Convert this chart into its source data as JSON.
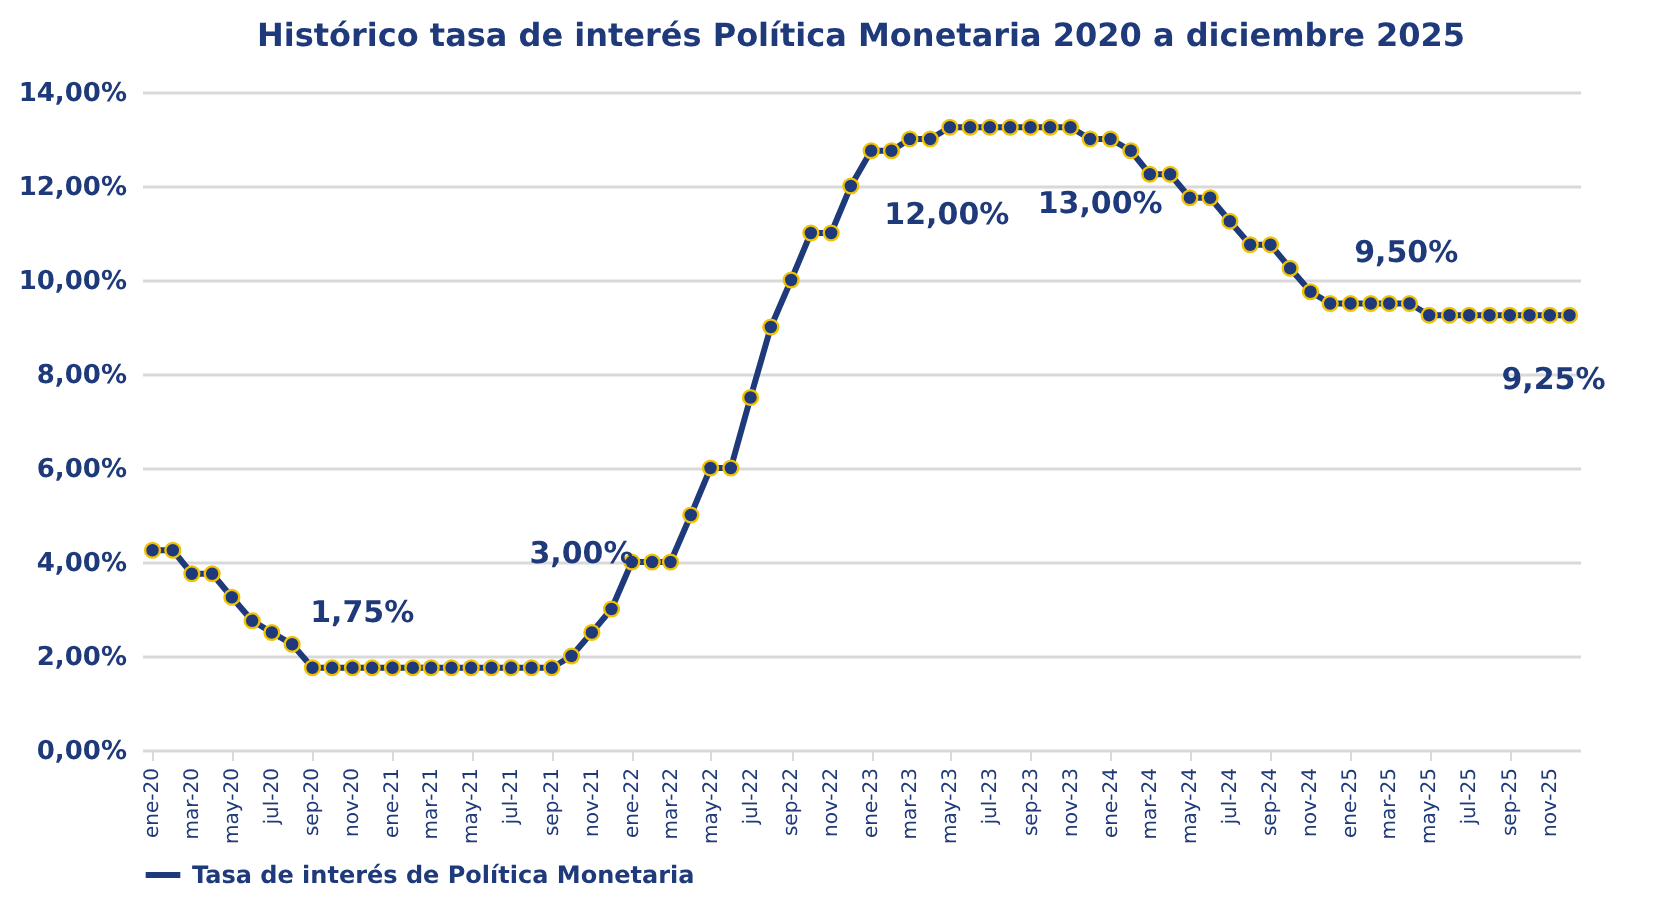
{
  "chart_data": {
    "type": "line",
    "title": "Histórico tasa de interés Política Monetaria 2020 a diciembre 2025",
    "x": [
      "2020-01",
      "2020-02",
      "2020-03",
      "2020-04",
      "2020-05",
      "2020-06",
      "2020-07",
      "2020-08",
      "2020-09",
      "2020-10",
      "2020-11",
      "2020-12",
      "2021-01",
      "2021-02",
      "2021-03",
      "2021-04",
      "2021-05",
      "2021-06",
      "2021-07",
      "2021-08",
      "2021-09",
      "2021-10",
      "2021-11",
      "2021-12",
      "2022-01",
      "2022-02",
      "2022-03",
      "2022-04",
      "2022-05",
      "2022-06",
      "2022-07",
      "2022-08",
      "2022-09",
      "2022-10",
      "2022-11",
      "2022-12",
      "2023-01",
      "2023-02",
      "2023-03",
      "2023-04",
      "2023-05",
      "2023-06",
      "2023-07",
      "2023-08",
      "2023-09",
      "2023-10",
      "2023-11",
      "2023-12",
      "2024-01",
      "2024-02",
      "2024-03",
      "2024-04",
      "2024-05",
      "2024-06",
      "2024-07",
      "2024-08",
      "2024-09",
      "2024-10",
      "2024-11",
      "2024-12",
      "2025-01",
      "2025-02",
      "2025-03",
      "2025-04",
      "2025-05",
      "2025-06",
      "2025-07",
      "2025-08",
      "2025-09",
      "2025-10",
      "2025-11",
      "2025-12"
    ],
    "series": [
      {
        "name": "Tasa de interés de Política Monetaria",
        "color": "#1f3a7a",
        "values": [
          4.25,
          4.25,
          3.75,
          3.75,
          3.25,
          2.75,
          2.5,
          2.25,
          1.75,
          1.75,
          1.75,
          1.75,
          1.75,
          1.75,
          1.75,
          1.75,
          1.75,
          1.75,
          1.75,
          1.75,
          1.75,
          2.0,
          2.5,
          3.0,
          4.0,
          4.0,
          4.0,
          5.0,
          6.0,
          6.0,
          7.5,
          9.0,
          10.0,
          11.0,
          11.0,
          12.0,
          12.75,
          12.75,
          13.0,
          13.0,
          13.25,
          13.25,
          13.25,
          13.25,
          13.25,
          13.25,
          13.25,
          13.0,
          13.0,
          12.75,
          12.25,
          12.25,
          11.75,
          11.75,
          11.25,
          10.75,
          10.75,
          10.25,
          9.75,
          9.5,
          9.5,
          9.5,
          9.5,
          9.5,
          9.25,
          9.25,
          9.25,
          9.25,
          9.25,
          9.25,
          9.25,
          9.25
        ]
      }
    ],
    "xlim": [
      "2019-12-16",
      "2025-12-17"
    ],
    "xticks": [
      {
        "value": "2020-01",
        "label": "ene-20"
      },
      {
        "value": "2020-03",
        "label": "mar-20"
      },
      {
        "value": "2020-05",
        "label": "may-20"
      },
      {
        "value": "2020-07",
        "label": "jul-20"
      },
      {
        "value": "2020-09",
        "label": "sep-20"
      },
      {
        "value": "2020-11",
        "label": "nov-20"
      },
      {
        "value": "2021-01",
        "label": "ene-21"
      },
      {
        "value": "2021-03",
        "label": "mar-21"
      },
      {
        "value": "2021-05",
        "label": "may-21"
      },
      {
        "value": "2021-07",
        "label": "jul-21"
      },
      {
        "value": "2021-09",
        "label": "sep-21"
      },
      {
        "value": "2021-11",
        "label": "nov-21"
      },
      {
        "value": "2022-01",
        "label": "ene-22"
      },
      {
        "value": "2022-03",
        "label": "mar-22"
      },
      {
        "value": "2022-05",
        "label": "may-22"
      },
      {
        "value": "2022-07",
        "label": "jul-22"
      },
      {
        "value": "2022-09",
        "label": "sep-22"
      },
      {
        "value": "2022-11",
        "label": "nov-22"
      },
      {
        "value": "2023-01",
        "label": "ene-23"
      },
      {
        "value": "2023-03",
        "label": "mar-23"
      },
      {
        "value": "2023-05",
        "label": "may-23"
      },
      {
        "value": "2023-07",
        "label": "jul-23"
      },
      {
        "value": "2023-09",
        "label": "sep-23"
      },
      {
        "value": "2023-11",
        "label": "nov-23"
      },
      {
        "value": "2024-01",
        "label": "ene-24"
      },
      {
        "value": "2024-03",
        "label": "mar-24"
      },
      {
        "value": "2024-05",
        "label": "may-24"
      },
      {
        "value": "2024-07",
        "label": "jul-24"
      },
      {
        "value": "2024-09",
        "label": "sep-24"
      },
      {
        "value": "2024-11",
        "label": "nov-24"
      },
      {
        "value": "2025-01",
        "label": "ene-25"
      },
      {
        "value": "2025-03",
        "label": "mar-25"
      },
      {
        "value": "2025-05",
        "label": "may-25"
      },
      {
        "value": "2025-07",
        "label": "jul-25"
      },
      {
        "value": "2025-09",
        "label": "sep-25"
      },
      {
        "value": "2025-11",
        "label": "nov-25"
      }
    ],
    "ylim": [
      0,
      14
    ],
    "yticks": [
      {
        "value": 0,
        "label": "0,00%"
      },
      {
        "value": 2,
        "label": "2,00%"
      },
      {
        "value": 4,
        "label": "4,00%"
      },
      {
        "value": 6,
        "label": "6,00%"
      },
      {
        "value": 8,
        "label": "8,00%"
      },
      {
        "value": 10,
        "label": "10,00%"
      },
      {
        "value": 12,
        "label": "12,00%"
      },
      {
        "value": 14,
        "label": "14,00%"
      }
    ],
    "grid": "y",
    "legend": "bottom",
    "marker": "circle",
    "line_style": "solid",
    "annotations": [
      {
        "text": "1,75%",
        "x": "2020-12",
        "y": 1.75
      },
      {
        "text": "3,00%",
        "x": "2021-12",
        "y": 3.0
      },
      {
        "text": "12,00%",
        "x": "2022-12",
        "y": 12.0
      },
      {
        "text": "13,00%",
        "x": "2023-12",
        "y": 13.0
      },
      {
        "text": "9,50%",
        "x": "2024-12",
        "y": 9.5
      },
      {
        "text": "9,25%",
        "x": "2025-12",
        "y": 9.25
      }
    ]
  }
}
